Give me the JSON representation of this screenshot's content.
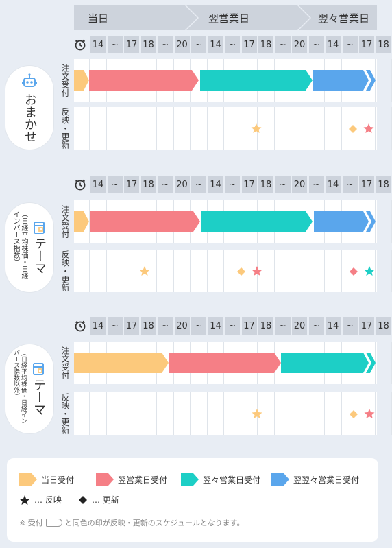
{
  "header": {
    "day1": "当日",
    "day2": "翌営業日",
    "day3": "翌々営業日"
  },
  "hours": [
    "14",
    "~",
    "17",
    "18",
    "~",
    "20",
    "~",
    "14",
    "~",
    "17",
    "18",
    "~",
    "20",
    "~",
    "14",
    "~",
    "17",
    "18"
  ],
  "row_labels": {
    "order": "注文受付",
    "reflect": "反映・更新"
  },
  "sections": [
    {
      "title": "おまかせ",
      "subtitle": ""
    },
    {
      "title": "テーマ",
      "subtitle": "（日経平均株価・日経インバース指数）"
    },
    {
      "title": "テーマ",
      "subtitle": "（日経平均株価・日経インバース指数以外）"
    }
  ],
  "legend": {
    "items": [
      "当日受付",
      "翌営業日受付",
      "翌々営業日受付",
      "翌翌々営業日受付"
    ],
    "colors": [
      "#fcc97c",
      "#f57f86",
      "#1dcfc6",
      "#5aa6ec"
    ],
    "star": "… 反映",
    "diamond": "… 更新",
    "note_prefix": "※ 受付",
    "note_suffix": "と同色の印が反映・更新のスケジュールとなります。"
  }
}
